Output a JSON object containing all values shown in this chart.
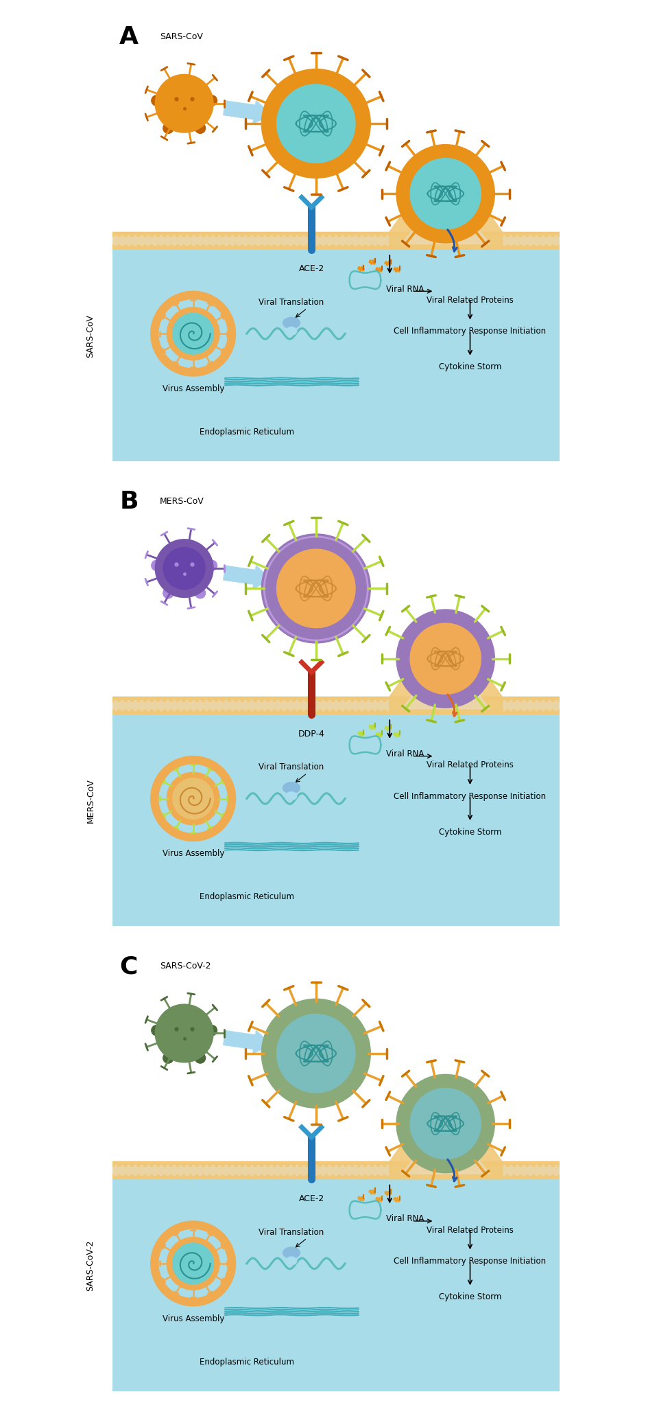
{
  "panels": [
    {
      "label": "A",
      "virus_label": "SARS-CoV",
      "side_label": "SARS-CoV",
      "receptor_label": "ACE-2",
      "virus_outer": "#E8921A",
      "virus_inner": "#6ECECE",
      "virus_rna": "#2A9090",
      "spike_shaft": "#E8921A",
      "spike_tip": "#C06000",
      "small_virus_outer": "#E8921A",
      "small_virus_inner": "#E8921A",
      "small_virus_detail": "#C06000",
      "intracell_virus_outer": "#F0AA50",
      "intracell_virus_inner": "#6ECECE",
      "intracell_spike": "#F0AA50",
      "receptor_color": "#2277BB",
      "receptor_head": "#3399CC",
      "membrane_color": "#F0C878",
      "membrane_white": "#FFFFFF",
      "fuse_arrow_color": "#2255AA",
      "arrow_color": "#A8D8EE"
    },
    {
      "label": "B",
      "virus_label": "MERS-CoV",
      "side_label": "MERS-CoV",
      "receptor_label": "DDP-4",
      "virus_outer": "#9977BB",
      "virus_inner": "#F0AA55",
      "virus_rna": "#CC8833",
      "spike_shaft": "#BBDD44",
      "spike_tip": "#99BB22",
      "small_virus_outer": "#7755AA",
      "small_virus_inner": "#6644AA",
      "small_virus_detail": "#AA88DD",
      "intracell_virus_outer": "#F0AA50",
      "intracell_virus_inner": "#E8C070",
      "intracell_spike": "#BBDD44",
      "receptor_color": "#AA2211",
      "receptor_head": "#CC3322",
      "membrane_color": "#F0C878",
      "membrane_white": "#FFFFFF",
      "fuse_arrow_color": "#DD6622",
      "arrow_color": "#A8D8EE"
    },
    {
      "label": "C",
      "virus_label": "SARS-CoV-2",
      "side_label": "SARS-CoV-2",
      "receptor_label": "ACE-2",
      "virus_outer": "#8BAA7A",
      "virus_inner": "#7BBCBC",
      "virus_rna": "#2A9090",
      "spike_shaft": "#E8A030",
      "spike_tip": "#CC7800",
      "small_virus_outer": "#6B8E5A",
      "small_virus_inner": "#6B8E5A",
      "small_virus_detail": "#4A6A3A",
      "intracell_virus_outer": "#F0AA50",
      "intracell_virus_inner": "#6ECECE",
      "intracell_spike": "#F0AA50",
      "receptor_color": "#2277BB",
      "receptor_head": "#3399CC",
      "membrane_color": "#F0C878",
      "membrane_white": "#FFFFFF",
      "fuse_arrow_color": "#2255AA",
      "arrow_color": "#A8D8EE"
    }
  ],
  "cell_bg": "#A8DCE8",
  "extracell_bg": "#FFFFFF",
  "text_labels": {
    "viral_rna": "Viral RNA",
    "viral_proteins": "Viral Related Proteins",
    "cell_inflam": "Cell Inflammatory Response Initiation",
    "cytokine": "Cytokine Storm",
    "virus_assembly": "Virus Assembly",
    "viral_translation": "Viral Translation",
    "endoplasmic": "Endoplasmic Reticulum"
  },
  "fig_width": 9.61,
  "fig_height": 20.47
}
